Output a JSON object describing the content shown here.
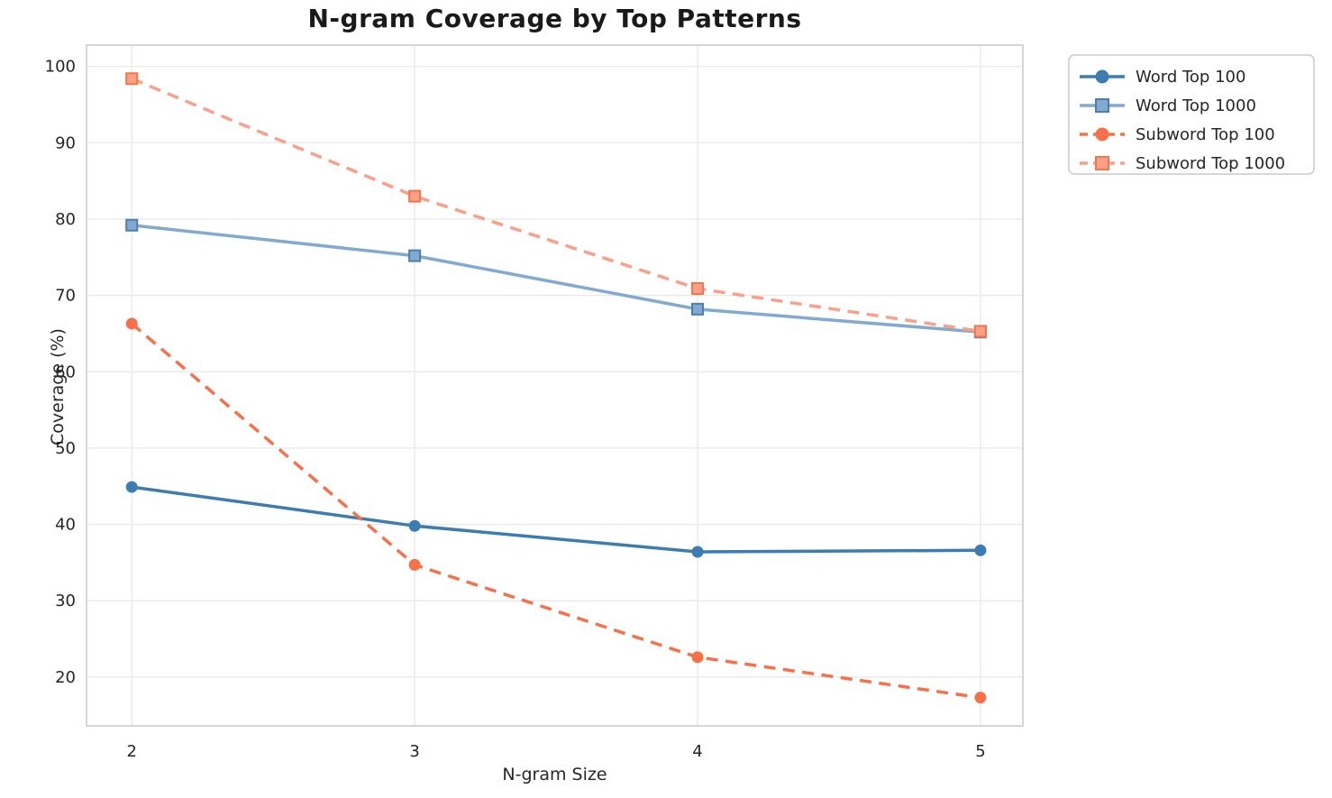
{
  "chart_data": {
    "type": "line",
    "title": "N-gram Coverage by Top Patterns",
    "xlabel": "N-gram Size",
    "ylabel": "Coverage (%)",
    "x": [
      2,
      3,
      4,
      5
    ],
    "x_tick_labels": [
      "2",
      "3",
      "4",
      "5"
    ],
    "y_ticks": [
      20,
      30,
      40,
      50,
      60,
      70,
      80,
      90,
      100
    ],
    "xlim": [
      1.84,
      5.15
    ],
    "ylim": [
      13.6,
      102.8
    ],
    "grid": true,
    "legend_position": "outside-upper-right",
    "series": [
      {
        "name": "Word Top 100",
        "values": [
          44.9,
          39.8,
          36.4,
          36.6
        ],
        "color": "#3c7cb0",
        "marker": "circle",
        "marker_edge": "#3c7cb0",
        "linestyle": "solid"
      },
      {
        "name": "Word Top 1000",
        "values": [
          79.2,
          75.2,
          68.2,
          65.2
        ],
        "color": "#82aad0",
        "marker": "square",
        "marker_edge": "#4a7fae",
        "linestyle": "solid"
      },
      {
        "name": "Subword Top 100",
        "values": [
          66.3,
          34.7,
          22.6,
          17.3
        ],
        "color": "#f8704a",
        "marker": "circle",
        "marker_edge": "#f8704a",
        "linestyle": "dashed"
      },
      {
        "name": "Subword Top 1000",
        "values": [
          98.4,
          83.0,
          70.9,
          65.3
        ],
        "color": "#faa088",
        "marker": "square",
        "marker_edge": "#f3764b",
        "linestyle": "dashed"
      }
    ],
    "style": {
      "grid_color": "#eaeaea",
      "spine_color": "#cccccc",
      "tick_label_color": "#262626",
      "title_color": "#1a1a1a",
      "legend_border_color": "#cccccc",
      "background": "#ffffff"
    }
  }
}
